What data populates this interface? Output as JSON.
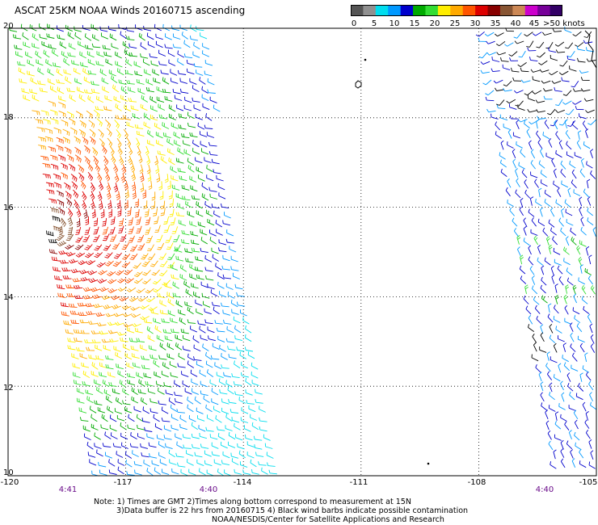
{
  "title": "ASCAT 25KM NOAA Winds 20160715 ascending",
  "colorbar": {
    "colors": [
      "#555555",
      "#909090",
      "#00ddee",
      "#0099ff",
      "#0000cc",
      "#00aa00",
      "#33dd33",
      "#ffee00",
      "#ffaa00",
      "#ff5500",
      "#dd0000",
      "#880000",
      "#885533",
      "#cc8855",
      "#cc00cc",
      "#770099",
      "#330066"
    ],
    "labels": [
      "0",
      "5",
      "10",
      "15",
      "20",
      "25",
      "30",
      "35",
      "40",
      "45",
      ">50 knots"
    ]
  },
  "axes": {
    "y_labels": [
      "20",
      "18",
      "16",
      "14",
      "12",
      "10"
    ],
    "x_labels": [
      "-120",
      "-117",
      "-114",
      "-111",
      "-108",
      "-105"
    ],
    "time_labels": [
      "4:41",
      "4:40",
      "4:40"
    ]
  },
  "notes": {
    "line1": "Note: 1) Times are GMT  2)Times along bottom correspond to measurement at 15N",
    "line2": "3)Data buffer is 22 hrs from 20160715  4) Black wind barbs indicate possible contamination",
    "line3": "NOAA/NESDIS/Center for Satellite Applications and Research"
  },
  "map": {
    "lat_range": [
      10,
      20
    ],
    "lon_range": [
      -120,
      -105
    ],
    "grid": true,
    "wind_speed_units": "knots"
  }
}
